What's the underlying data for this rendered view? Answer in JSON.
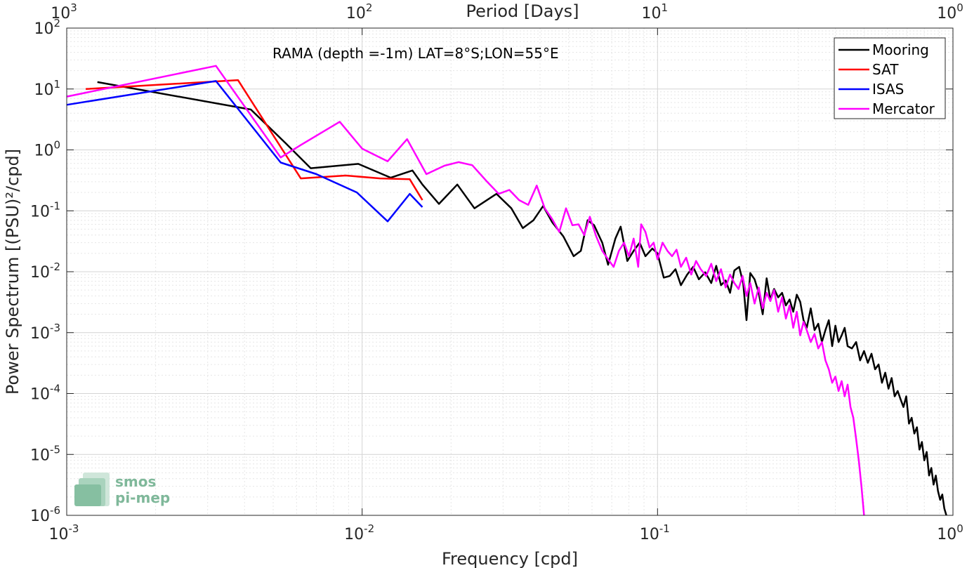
{
  "chart_data": {
    "type": "line",
    "title": "",
    "annotation": "RAMA (depth =-1m) LAT=8°S;LON=55°E",
    "xlabel": "Frequency [cpd]",
    "ylabel": "Power Spectrum [(PSU)²/cpd]",
    "top_xlabel": "Period [Days]",
    "xscale": "log",
    "yscale": "log",
    "xlim": [
      0.001,
      1
    ],
    "ylim": [
      1e-06,
      100
    ],
    "x_ticks": [
      {
        "base": "10",
        "exp": "-3"
      },
      {
        "base": "10",
        "exp": "-2"
      },
      {
        "base": "10",
        "exp": "-1"
      },
      {
        "base": "10",
        "exp": "0"
      }
    ],
    "y_ticks": [
      {
        "base": "10",
        "exp": "-6"
      },
      {
        "base": "10",
        "exp": "-5"
      },
      {
        "base": "10",
        "exp": "-4"
      },
      {
        "base": "10",
        "exp": "-3"
      },
      {
        "base": "10",
        "exp": "-2"
      },
      {
        "base": "10",
        "exp": "-1"
      },
      {
        "base": "10",
        "exp": "0"
      },
      {
        "base": "10",
        "exp": "1"
      },
      {
        "base": "10",
        "exp": "2"
      }
    ],
    "top_ticks": [
      {
        "base": "10",
        "exp": "3"
      },
      {
        "base": "10",
        "exp": "2"
      },
      {
        "base": "10",
        "exp": "1"
      },
      {
        "base": "10",
        "exp": "0"
      }
    ],
    "grid": true,
    "legend_position": "top-right",
    "series": [
      {
        "name": "Mooring",
        "color": "#000000",
        "points": [
          [
            0.00127,
            13.0
          ],
          [
            0.0042,
            4.6
          ],
          [
            0.0055,
            1.3
          ],
          [
            0.0067,
            0.5
          ],
          [
            0.0097,
            0.59
          ],
          [
            0.0125,
            0.35
          ],
          [
            0.0148,
            0.46
          ],
          [
            0.016,
            0.27
          ],
          [
            0.0182,
            0.13
          ],
          [
            0.021,
            0.27
          ],
          [
            0.024,
            0.11
          ],
          [
            0.0285,
            0.19
          ],
          [
            0.032,
            0.11
          ],
          [
            0.035,
            0.052
          ],
          [
            0.038,
            0.07
          ],
          [
            0.041,
            0.12
          ],
          [
            0.044,
            0.065
          ],
          [
            0.048,
            0.038
          ],
          [
            0.052,
            0.018
          ],
          [
            0.055,
            0.022
          ],
          [
            0.058,
            0.07
          ],
          [
            0.061,
            0.058
          ],
          [
            0.065,
            0.03
          ],
          [
            0.068,
            0.013
          ],
          [
            0.072,
            0.035
          ],
          [
            0.075,
            0.055
          ],
          [
            0.079,
            0.015
          ],
          [
            0.083,
            0.022
          ],
          [
            0.087,
            0.03
          ],
          [
            0.091,
            0.018
          ],
          [
            0.096,
            0.024
          ],
          [
            0.1,
            0.02
          ],
          [
            0.105,
            0.008
          ],
          [
            0.11,
            0.0085
          ],
          [
            0.115,
            0.011
          ],
          [
            0.12,
            0.006
          ],
          [
            0.126,
            0.009
          ],
          [
            0.132,
            0.012
          ],
          [
            0.138,
            0.0075
          ],
          [
            0.145,
            0.0098
          ],
          [
            0.152,
            0.0065
          ],
          [
            0.158,
            0.0125
          ],
          [
            0.164,
            0.006
          ],
          [
            0.17,
            0.0072
          ],
          [
            0.176,
            0.0045
          ],
          [
            0.182,
            0.0105
          ],
          [
            0.189,
            0.012
          ],
          [
            0.195,
            0.0065
          ],
          [
            0.2,
            0.0016
          ],
          [
            0.206,
            0.0095
          ],
          [
            0.213,
            0.0075
          ],
          [
            0.22,
            0.0045
          ],
          [
            0.227,
            0.002
          ],
          [
            0.234,
            0.0078
          ],
          [
            0.241,
            0.0035
          ],
          [
            0.248,
            0.0052
          ],
          [
            0.256,
            0.0038
          ],
          [
            0.264,
            0.0045
          ],
          [
            0.272,
            0.0028
          ],
          [
            0.28,
            0.0035
          ],
          [
            0.288,
            0.0022
          ],
          [
            0.296,
            0.0042
          ],
          [
            0.304,
            0.0032
          ],
          [
            0.312,
            0.0016
          ],
          [
            0.32,
            0.0012
          ],
          [
            0.33,
            0.0025
          ],
          [
            0.34,
            0.0011
          ],
          [
            0.35,
            0.0014
          ],
          [
            0.36,
            0.0007
          ],
          [
            0.37,
            0.0011
          ],
          [
            0.38,
            0.0016
          ],
          [
            0.39,
            0.0006
          ],
          [
            0.4,
            0.0013
          ],
          [
            0.41,
            0.0007
          ],
          [
            0.42,
            0.0009
          ],
          [
            0.43,
            0.0012
          ],
          [
            0.44,
            0.0006
          ],
          [
            0.455,
            0.00055
          ],
          [
            0.47,
            0.0007
          ],
          [
            0.485,
            0.00035
          ],
          [
            0.5,
            0.0005
          ],
          [
            0.515,
            0.00032
          ],
          [
            0.53,
            0.00045
          ],
          [
            0.545,
            0.00025
          ],
          [
            0.56,
            0.0003
          ],
          [
            0.575,
            0.00015
          ],
          [
            0.59,
            0.00022
          ],
          [
            0.605,
            0.00012
          ],
          [
            0.62,
            0.00018
          ],
          [
            0.635,
            9e-05
          ],
          [
            0.65,
            0.00011
          ],
          [
            0.665,
            8e-05
          ],
          [
            0.68,
            6e-05
          ],
          [
            0.695,
            9e-05
          ],
          [
            0.71,
            3.2e-05
          ],
          [
            0.725,
            4e-05
          ],
          [
            0.74,
            2.2e-05
          ],
          [
            0.755,
            2.8e-05
          ],
          [
            0.77,
            1.2e-05
          ],
          [
            0.785,
            1.6e-05
          ],
          [
            0.8,
            8e-06
          ],
          [
            0.815,
            1.1e-05
          ],
          [
            0.83,
            4.5e-06
          ],
          [
            0.845,
            6e-06
          ],
          [
            0.86,
            3.2e-06
          ],
          [
            0.875,
            4.5e-06
          ],
          [
            0.89,
            2.5e-06
          ],
          [
            0.905,
            1.8e-06
          ],
          [
            0.92,
            2.2e-06
          ],
          [
            0.935,
            1.3e-06
          ],
          [
            0.95,
            1e-06
          ]
        ]
      },
      {
        "name": "SAT",
        "color": "#ff0000",
        "points": [
          [
            0.00116,
            10.0
          ],
          [
            0.0038,
            14.0
          ],
          [
            0.0062,
            0.34
          ],
          [
            0.0088,
            0.38
          ],
          [
            0.0115,
            0.34
          ],
          [
            0.0145,
            0.33
          ],
          [
            0.016,
            0.15
          ]
        ]
      },
      {
        "name": "ISAS",
        "color": "#0000ff",
        "points": [
          [
            0.001,
            5.5
          ],
          [
            0.0032,
            13.5
          ],
          [
            0.0053,
            0.62
          ],
          [
            0.007,
            0.4
          ],
          [
            0.0096,
            0.2
          ],
          [
            0.0122,
            0.067
          ],
          [
            0.0145,
            0.19
          ],
          [
            0.016,
            0.115
          ]
        ]
      },
      {
        "name": "Mercator",
        "color": "#ff00ff",
        "points": [
          [
            0.001,
            7.5
          ],
          [
            0.0032,
            24.0
          ],
          [
            0.0053,
            0.75
          ],
          [
            0.0062,
            1.2
          ],
          [
            0.0084,
            2.9
          ],
          [
            0.01,
            1.05
          ],
          [
            0.0122,
            0.65
          ],
          [
            0.0142,
            1.5
          ],
          [
            0.0165,
            0.4
          ],
          [
            0.019,
            0.55
          ],
          [
            0.0212,
            0.63
          ],
          [
            0.0236,
            0.56
          ],
          [
            0.0265,
            0.3
          ],
          [
            0.029,
            0.19
          ],
          [
            0.0315,
            0.22
          ],
          [
            0.034,
            0.15
          ],
          [
            0.0365,
            0.125
          ],
          [
            0.039,
            0.26
          ],
          [
            0.0415,
            0.11
          ],
          [
            0.044,
            0.073
          ],
          [
            0.0465,
            0.045
          ],
          [
            0.049,
            0.11
          ],
          [
            0.0515,
            0.058
          ],
          [
            0.054,
            0.06
          ],
          [
            0.0565,
            0.04
          ],
          [
            0.059,
            0.08
          ],
          [
            0.062,
            0.038
          ],
          [
            0.065,
            0.022
          ],
          [
            0.068,
            0.016
          ],
          [
            0.071,
            0.012
          ],
          [
            0.074,
            0.022
          ],
          [
            0.077,
            0.03
          ],
          [
            0.08,
            0.018
          ],
          [
            0.083,
            0.035
          ],
          [
            0.086,
            0.012
          ],
          [
            0.088,
            0.06
          ],
          [
            0.091,
            0.045
          ],
          [
            0.094,
            0.025
          ],
          [
            0.097,
            0.03
          ],
          [
            0.1,
            0.016
          ],
          [
            0.104,
            0.03
          ],
          [
            0.108,
            0.022
          ],
          [
            0.112,
            0.018
          ],
          [
            0.116,
            0.023
          ],
          [
            0.12,
            0.012
          ],
          [
            0.125,
            0.017
          ],
          [
            0.13,
            0.009
          ],
          [
            0.135,
            0.015
          ],
          [
            0.14,
            0.011
          ],
          [
            0.146,
            0.0085
          ],
          [
            0.152,
            0.0135
          ],
          [
            0.158,
            0.007
          ],
          [
            0.164,
            0.011
          ],
          [
            0.17,
            0.0055
          ],
          [
            0.176,
            0.009
          ],
          [
            0.182,
            0.0065
          ],
          [
            0.188,
            0.0052
          ],
          [
            0.194,
            0.0085
          ],
          [
            0.2,
            0.004
          ],
          [
            0.206,
            0.0065
          ],
          [
            0.213,
            0.003
          ],
          [
            0.22,
            0.0055
          ],
          [
            0.227,
            0.0025
          ],
          [
            0.234,
            0.0045
          ],
          [
            0.241,
            0.0033
          ],
          [
            0.248,
            0.005
          ],
          [
            0.256,
            0.0022
          ],
          [
            0.264,
            0.0038
          ],
          [
            0.272,
            0.0017
          ],
          [
            0.28,
            0.0028
          ],
          [
            0.288,
            0.0012
          ],
          [
            0.296,
            0.0022
          ],
          [
            0.304,
            0.0009
          ],
          [
            0.312,
            0.0015
          ],
          [
            0.32,
            0.0011
          ],
          [
            0.33,
            0.0007
          ],
          [
            0.34,
            0.00095
          ],
          [
            0.35,
            0.00055
          ],
          [
            0.36,
            0.0007
          ],
          [
            0.37,
            0.00035
          ],
          [
            0.38,
            0.00025
          ],
          [
            0.39,
            0.00015
          ],
          [
            0.4,
            0.00019
          ],
          [
            0.41,
            0.00011
          ],
          [
            0.42,
            0.00016
          ],
          [
            0.43,
            9e-05
          ],
          [
            0.44,
            0.00014
          ],
          [
            0.45,
            6e-05
          ],
          [
            0.46,
            4e-05
          ],
          [
            0.47,
            1.8e-05
          ],
          [
            0.48,
            8e-06
          ],
          [
            0.49,
            3e-06
          ],
          [
            0.5,
            1e-06
          ]
        ]
      }
    ]
  },
  "logo": {
    "line1": "smos",
    "line2": "pi-mep"
  }
}
